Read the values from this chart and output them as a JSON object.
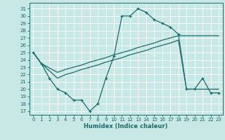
{
  "bg_color": "#c8e8e5",
  "line_color": "#1a6b6b",
  "grid_color": "#a8d8d5",
  "xlabel": "Humidex (Indice chaleur)",
  "xlim": [
    -0.5,
    23.5
  ],
  "ylim": [
    16.5,
    31.8
  ],
  "xticks": [
    0,
    1,
    2,
    3,
    4,
    5,
    6,
    7,
    8,
    9,
    10,
    11,
    12,
    13,
    14,
    15,
    16,
    17,
    18,
    19,
    20,
    21,
    22,
    23
  ],
  "yticks": [
    17,
    18,
    19,
    20,
    21,
    22,
    23,
    24,
    25,
    26,
    27,
    28,
    29,
    30,
    31
  ],
  "curve_x": [
    0,
    1,
    2,
    3,
    4,
    5,
    6,
    7,
    8,
    9,
    10,
    11,
    12,
    13,
    14,
    15,
    16,
    17,
    18,
    19,
    20,
    21,
    22,
    23
  ],
  "curve_y": [
    25.0,
    23.5,
    21.5,
    20.0,
    19.5,
    18.5,
    18.5,
    17.0,
    18.0,
    21.5,
    24.5,
    30.0,
    30.0,
    31.0,
    30.5,
    29.5,
    29.0,
    28.5,
    27.5,
    20.0,
    20.0,
    21.5,
    19.5,
    19.5
  ],
  "upper_x": [
    0,
    1,
    3,
    4,
    5,
    6,
    7,
    8,
    9,
    10,
    11,
    12,
    13,
    14,
    15,
    16,
    17,
    18,
    19,
    20,
    21,
    22,
    23
  ],
  "upper_y": [
    25.0,
    23.5,
    22.3,
    22.7,
    23.0,
    23.3,
    23.7,
    24.0,
    24.3,
    24.7,
    25.0,
    25.3,
    25.7,
    26.0,
    26.3,
    26.7,
    27.0,
    27.3,
    27.3,
    27.3,
    27.3,
    27.3,
    27.3
  ],
  "lower_x": [
    0,
    1,
    3,
    4,
    5,
    6,
    7,
    8,
    9,
    10,
    11,
    12,
    13,
    14,
    15,
    16,
    17,
    18,
    19,
    20,
    21,
    22,
    23
  ],
  "lower_y": [
    25.0,
    23.5,
    21.5,
    22.0,
    22.3,
    22.7,
    23.0,
    23.3,
    23.7,
    24.0,
    24.3,
    24.7,
    25.0,
    25.3,
    25.7,
    26.0,
    26.3,
    26.7,
    20.0,
    20.0,
    20.0,
    20.0,
    20.0
  ]
}
